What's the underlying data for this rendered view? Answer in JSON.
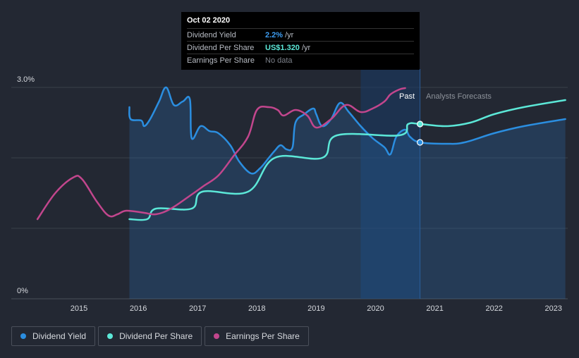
{
  "colors": {
    "background": "#232833",
    "dividend_yield": "#2b8ee0",
    "dividend_per_share": "#5ce8d8",
    "earnings_per_share": "#c2468d",
    "grid": "#3a3f4a"
  },
  "tooltip": {
    "date": "Oct 02 2020",
    "rows": [
      {
        "label": "Dividend Yield",
        "value": "2.2%",
        "unit": "/yr",
        "color": "#3d9cf0"
      },
      {
        "label": "Dividend Per Share",
        "value": "US$1.320",
        "unit": "/yr",
        "color": "#5ce8d8"
      },
      {
        "label": "Earnings Per Share",
        "value": "No data",
        "unit": "",
        "color": "#7d828b"
      }
    ]
  },
  "legend": [
    {
      "label": "Dividend Yield",
      "color": "#2b8ee0"
    },
    {
      "label": "Dividend Per Share",
      "color": "#5ce8d8"
    },
    {
      "label": "Earnings Per Share",
      "color": "#c2468d"
    }
  ],
  "chart_data": {
    "type": "line",
    "title": "",
    "xlabel": "",
    "ylabel": "",
    "x_ticks": [
      "2015",
      "2016",
      "2017",
      "2018",
      "2019",
      "2020",
      "2021",
      "2022",
      "2023"
    ],
    "y_ticks": [
      "0%",
      "3.0%"
    ],
    "ylim": [
      0,
      3.0
    ],
    "xlim": [
      2014.3,
      2023.2
    ],
    "past_label": "Past",
    "forecast_label": "Analysts Forecasts",
    "highlight_range": [
      2019.75,
      2020.75
    ],
    "highlight_date": 2020.75,
    "series": [
      {
        "name": "Dividend Yield",
        "axis": "yield_pct",
        "filled": true,
        "points": [
          [
            2015.85,
            2.72
          ],
          [
            2015.87,
            2.55
          ],
          [
            2016.05,
            2.53
          ],
          [
            2016.1,
            2.45
          ],
          [
            2016.2,
            2.55
          ],
          [
            2016.35,
            2.8
          ],
          [
            2016.47,
            3.0
          ],
          [
            2016.6,
            2.75
          ],
          [
            2016.75,
            2.8
          ],
          [
            2016.87,
            2.83
          ],
          [
            2016.9,
            2.28
          ],
          [
            2017.05,
            2.45
          ],
          [
            2017.2,
            2.38
          ],
          [
            2017.35,
            2.35
          ],
          [
            2017.55,
            2.18
          ],
          [
            2017.7,
            1.95
          ],
          [
            2017.9,
            1.78
          ],
          [
            2018.05,
            1.85
          ],
          [
            2018.2,
            2.0
          ],
          [
            2018.3,
            2.1
          ],
          [
            2018.4,
            2.18
          ],
          [
            2018.5,
            2.12
          ],
          [
            2018.6,
            2.15
          ],
          [
            2018.65,
            2.5
          ],
          [
            2018.8,
            2.62
          ],
          [
            2018.95,
            2.7
          ],
          [
            2019.0,
            2.62
          ],
          [
            2019.1,
            2.45
          ],
          [
            2019.25,
            2.55
          ],
          [
            2019.4,
            2.78
          ],
          [
            2019.55,
            2.65
          ],
          [
            2019.75,
            2.45
          ],
          [
            2019.95,
            2.28
          ],
          [
            2020.15,
            2.15
          ],
          [
            2020.25,
            2.05
          ],
          [
            2020.35,
            2.3
          ],
          [
            2020.5,
            2.4
          ],
          [
            2020.58,
            2.3
          ],
          [
            2020.75,
            2.22
          ],
          [
            2021.2,
            2.2
          ],
          [
            2021.5,
            2.22
          ],
          [
            2022.0,
            2.35
          ],
          [
            2022.5,
            2.45
          ],
          [
            2023.2,
            2.55
          ]
        ]
      },
      {
        "name": "Dividend Per Share",
        "axis": "dps",
        "filled": false,
        "points": [
          [
            2015.85,
            1.13
          ],
          [
            2016.15,
            1.13
          ],
          [
            2016.3,
            1.28
          ],
          [
            2016.9,
            1.28
          ],
          [
            2017.08,
            1.52
          ],
          [
            2017.85,
            1.52
          ],
          [
            2018.3,
            2.0
          ],
          [
            2019.1,
            2.0
          ],
          [
            2019.35,
            2.32
          ],
          [
            2020.4,
            2.32
          ],
          [
            2020.55,
            2.48
          ],
          [
            2020.75,
            2.48
          ],
          [
            2021.2,
            2.45
          ],
          [
            2021.6,
            2.5
          ],
          [
            2022.0,
            2.62
          ],
          [
            2022.5,
            2.72
          ],
          [
            2023.2,
            2.82
          ]
        ]
      },
      {
        "name": "Earnings Per Share",
        "axis": "eps",
        "filled": false,
        "points": [
          [
            2014.3,
            1.13
          ],
          [
            2014.6,
            1.5
          ],
          [
            2014.9,
            1.72
          ],
          [
            2015.05,
            1.7
          ],
          [
            2015.3,
            1.38
          ],
          [
            2015.5,
            1.18
          ],
          [
            2015.65,
            1.2
          ],
          [
            2015.8,
            1.25
          ],
          [
            2016.1,
            1.22
          ],
          [
            2016.3,
            1.2
          ],
          [
            2016.55,
            1.28
          ],
          [
            2016.9,
            1.48
          ],
          [
            2017.1,
            1.6
          ],
          [
            2017.35,
            1.75
          ],
          [
            2017.6,
            2.02
          ],
          [
            2017.85,
            2.3
          ],
          [
            2018.0,
            2.68
          ],
          [
            2018.2,
            2.72
          ],
          [
            2018.35,
            2.68
          ],
          [
            2018.45,
            2.6
          ],
          [
            2018.65,
            2.68
          ],
          [
            2018.85,
            2.6
          ],
          [
            2019.0,
            2.43
          ],
          [
            2019.25,
            2.55
          ],
          [
            2019.5,
            2.75
          ],
          [
            2019.75,
            2.65
          ],
          [
            2019.95,
            2.7
          ],
          [
            2020.15,
            2.8
          ],
          [
            2020.25,
            2.9
          ],
          [
            2020.4,
            2.97
          ],
          [
            2020.5,
            2.99
          ]
        ]
      }
    ]
  }
}
